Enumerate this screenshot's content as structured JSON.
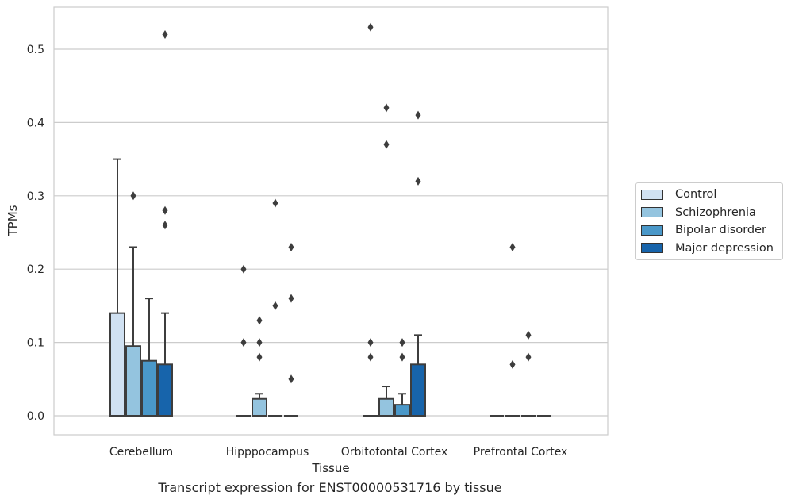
{
  "chart_data": {
    "type": "boxplot",
    "xlabel": "Tissue",
    "ylabel": "TPMs",
    "categories": [
      "Cerebellum",
      "Hipppocampus",
      "Orbitofontal Cortex",
      "Prefrontal Cortex"
    ],
    "ylim": [
      -0.025,
      0.558
    ],
    "yticks": [
      0.0,
      0.1,
      0.2,
      0.3,
      0.4,
      0.5
    ],
    "ytick_labels": [
      "0.0",
      "0.1",
      "0.2",
      "0.3",
      "0.4",
      "0.5"
    ],
    "grid": "horizontal",
    "legend_position": "right",
    "series": [
      {
        "name": "Control",
        "color": "#d0e1f2",
        "boxes": [
          {
            "q1": 0.0,
            "median": 0.0,
            "q3": 0.14,
            "whisker_low": 0.0,
            "whisker_high": 0.35,
            "outliers": []
          },
          {
            "q1": 0.0,
            "median": 0.0,
            "q3": 0.0,
            "whisker_low": 0.0,
            "whisker_high": 0.0,
            "outliers": [
              0.2,
              0.1
            ]
          },
          {
            "q1": 0.0,
            "median": 0.0,
            "q3": 0.0,
            "whisker_low": 0.0,
            "whisker_high": 0.0,
            "outliers": [
              0.53,
              0.1,
              0.08
            ]
          },
          {
            "q1": 0.0,
            "median": 0.0,
            "q3": 0.0,
            "whisker_low": 0.0,
            "whisker_high": 0.0,
            "outliers": []
          }
        ]
      },
      {
        "name": "Schizophrenia",
        "color": "#94c4df",
        "boxes": [
          {
            "q1": 0.0,
            "median": 0.0,
            "q3": 0.095,
            "whisker_low": 0.0,
            "whisker_high": 0.23,
            "outliers": [
              0.3
            ]
          },
          {
            "q1": 0.0,
            "median": 0.0,
            "q3": 0.023,
            "whisker_low": 0.0,
            "whisker_high": 0.03,
            "outliers": [
              0.13,
              0.1,
              0.08
            ]
          },
          {
            "q1": 0.0,
            "median": 0.0,
            "q3": 0.023,
            "whisker_low": 0.0,
            "whisker_high": 0.04,
            "outliers": [
              0.42,
              0.37
            ]
          },
          {
            "q1": 0.0,
            "median": 0.0,
            "q3": 0.0,
            "whisker_low": 0.0,
            "whisker_high": 0.0,
            "outliers": [
              0.23,
              0.07
            ]
          }
        ]
      },
      {
        "name": "Bipolar disorder",
        "color": "#4a98c9",
        "boxes": [
          {
            "q1": 0.0,
            "median": 0.0,
            "q3": 0.075,
            "whisker_low": 0.0,
            "whisker_high": 0.16,
            "outliers": []
          },
          {
            "q1": 0.0,
            "median": 0.0,
            "q3": 0.0,
            "whisker_low": 0.0,
            "whisker_high": 0.0,
            "outliers": [
              0.29,
              0.15
            ]
          },
          {
            "q1": 0.0,
            "median": 0.0,
            "q3": 0.015,
            "whisker_low": 0.0,
            "whisker_high": 0.03,
            "outliers": [
              0.1,
              0.08
            ]
          },
          {
            "q1": 0.0,
            "median": 0.0,
            "q3": 0.0,
            "whisker_low": 0.0,
            "whisker_high": 0.0,
            "outliers": [
              0.11,
              0.08
            ]
          }
        ]
      },
      {
        "name": "Major depression",
        "color": "#1764ab",
        "boxes": [
          {
            "q1": 0.0,
            "median": 0.0,
            "q3": 0.07,
            "whisker_low": 0.0,
            "whisker_high": 0.14,
            "outliers": [
              0.52,
              0.28,
              0.26
            ]
          },
          {
            "q1": 0.0,
            "median": 0.0,
            "q3": 0.0,
            "whisker_low": 0.0,
            "whisker_high": 0.0,
            "outliers": [
              0.23,
              0.16,
              0.05
            ]
          },
          {
            "q1": 0.0,
            "median": 0.0,
            "q3": 0.07,
            "whisker_low": 0.0,
            "whisker_high": 0.11,
            "outliers": [
              0.41,
              0.32
            ]
          },
          {
            "q1": 0.0,
            "median": 0.0,
            "q3": 0.0,
            "whisker_low": 0.0,
            "whisker_high": 0.0,
            "outliers": []
          }
        ]
      }
    ],
    "caption": "Transcript expression for ENST00000531716 by tissue"
  }
}
